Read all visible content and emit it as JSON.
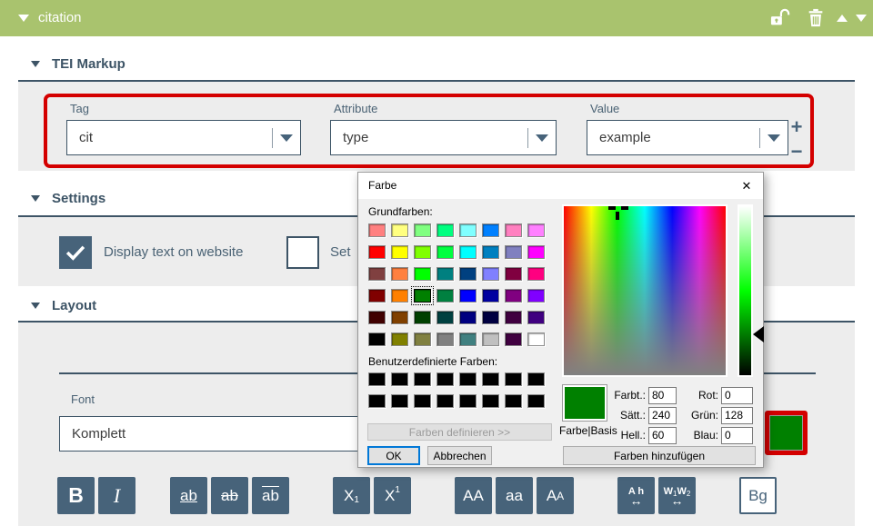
{
  "colors": {
    "header_green": "#a9c36e",
    "slate": "#47637a",
    "slate_dark": "#3d5466",
    "highlight_red": "#d40000",
    "panel_gray": "#ededed",
    "label_color": "#4a6274",
    "selected_green": "#008000"
  },
  "header": {
    "title": "citation"
  },
  "tei_markup": {
    "title": "TEI Markup",
    "fields": [
      {
        "label": "Tag",
        "value": "cit"
      },
      {
        "label": "Attribute",
        "value": "type"
      },
      {
        "label": "Value",
        "value": "example"
      }
    ],
    "add_label": "+",
    "remove_label": "−"
  },
  "settings": {
    "title": "Settings",
    "checkboxes": [
      {
        "label": "Display text on website",
        "checked": true
      },
      {
        "label": "Set",
        "checked": false
      }
    ]
  },
  "layout_section": {
    "title": "Layout",
    "font_label": "Font",
    "font_value": "Komplett",
    "format_buttons": [
      {
        "name": "bold",
        "parts": [
          {
            "t": "B",
            "k": "b"
          }
        ]
      },
      {
        "name": "italic",
        "parts": [
          {
            "t": "I",
            "k": "i"
          }
        ]
      },
      {
        "name": "underline",
        "parts": [
          {
            "t": "ab",
            "k": "u"
          }
        ]
      },
      {
        "name": "strikethrough",
        "parts": [
          {
            "t": "ab",
            "k": "st"
          }
        ]
      },
      {
        "name": "overline",
        "parts": [
          {
            "t": "ab",
            "k": "ov"
          }
        ]
      },
      {
        "name": "subscript",
        "parts": [
          {
            "t": "X",
            "k": "m"
          },
          {
            "t": "1",
            "k": "sub"
          }
        ]
      },
      {
        "name": "superscript",
        "parts": [
          {
            "t": "X",
            "k": "m"
          },
          {
            "t": "1",
            "k": "sup"
          }
        ]
      },
      {
        "name": "uppercase",
        "parts": [
          {
            "t": "AA",
            "k": "m"
          }
        ]
      },
      {
        "name": "lowercase",
        "parts": [
          {
            "t": "aa",
            "k": "m"
          }
        ]
      },
      {
        "name": "smallcaps",
        "parts": [
          {
            "t": "A",
            "k": "m"
          },
          {
            "t": "A",
            "k": "sc"
          }
        ]
      },
      {
        "name": "letter-height",
        "parts": [
          {
            "t": "A h",
            "k": "top"
          },
          {
            "t": "↔",
            "k": "arrow"
          }
        ]
      },
      {
        "name": "word-spacing",
        "parts": [
          {
            "t": "W",
            "k": "top"
          },
          {
            "t": "1",
            "k": "tsub"
          },
          {
            "t": "W",
            "k": "top"
          },
          {
            "t": "2",
            "k": "tsub"
          },
          {
            "t": "↔",
            "k": "arrow"
          }
        ]
      },
      {
        "name": "background",
        "variant": "light",
        "parts": [
          {
            "t": "Bg",
            "k": "m"
          }
        ]
      }
    ]
  },
  "font_color_swatch": {
    "color": "#008000"
  },
  "color_dialog": {
    "title": "Farbe",
    "close_label": "✕",
    "basic_label": "Grundfarben:",
    "basic_colors": [
      "#FF8080",
      "#FFFF80",
      "#80FF80",
      "#00FF80",
      "#80FFFF",
      "#0080FF",
      "#FF80C0",
      "#FF80FF",
      "#FF0000",
      "#FFFF00",
      "#80FF00",
      "#00FF40",
      "#00FFFF",
      "#0080C0",
      "#8080C0",
      "#FF00FF",
      "#804040",
      "#FF8040",
      "#00FF00",
      "#008080",
      "#004080",
      "#8080FF",
      "#800040",
      "#FF0080",
      "#800000",
      "#FF8000",
      "#008000",
      "#008040",
      "#0000FF",
      "#0000A0",
      "#800080",
      "#8000FF",
      "#400000",
      "#804000",
      "#004000",
      "#004040",
      "#000080",
      "#000040",
      "#400040",
      "#400080",
      "#000000",
      "#808000",
      "#808040",
      "#808080",
      "#408080",
      "#C0C0C0",
      "#400040",
      "#FFFFFF"
    ],
    "selected_index": 26,
    "custom_label": "Benutzerdefinierte Farben:",
    "custom_colors": [
      "#000000",
      "#000000",
      "#000000",
      "#000000",
      "#000000",
      "#000000",
      "#000000",
      "#000000",
      "#000000",
      "#000000",
      "#000000",
      "#000000",
      "#000000",
      "#000000",
      "#000000",
      "#000000"
    ],
    "define_label": "Farben definieren >>",
    "ok_label": "OK",
    "cancel_label": "Abbrechen",
    "add_label": "Farben hinzufügen",
    "preview_label": "Farbe|Basis",
    "preview_color": "#008000",
    "hsl_fields": [
      {
        "label": "Farbt.:",
        "value": "80"
      },
      {
        "label": "Sätt.:",
        "value": "240"
      },
      {
        "label": "Hell.:",
        "value": "60"
      }
    ],
    "rgb_fields": [
      {
        "label": "Rot:",
        "value": "0"
      },
      {
        "label": "Grün:",
        "value": "128"
      },
      {
        "label": "Blau:",
        "value": "0"
      }
    ]
  }
}
